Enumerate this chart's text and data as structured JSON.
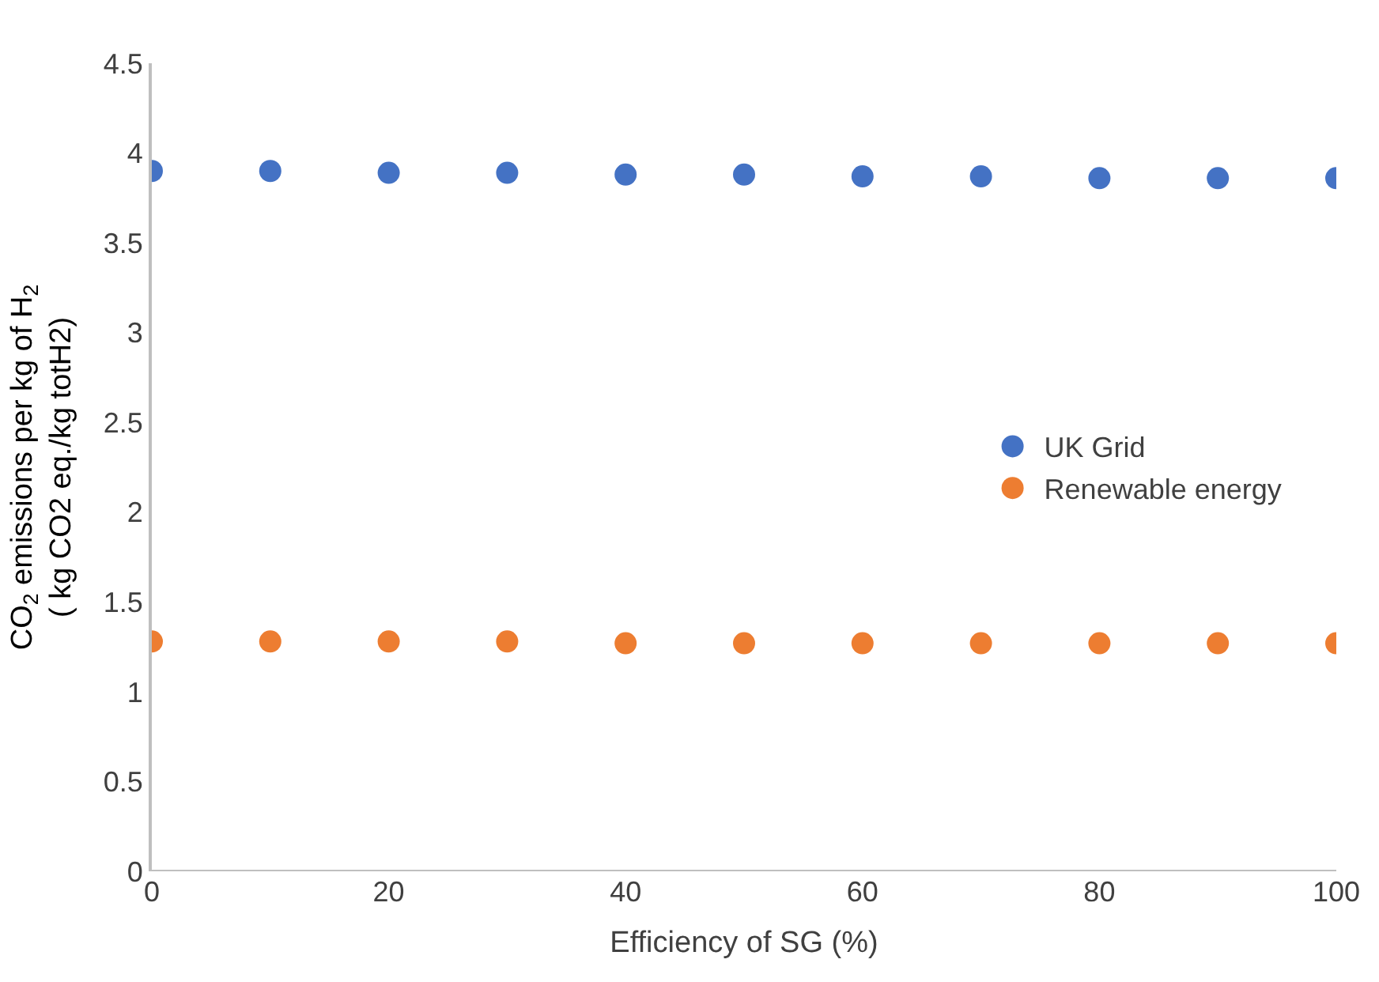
{
  "chart_data": {
    "type": "scatter",
    "xlabel": "Efficiency of SG (%)",
    "ylabel": "CO$_{2}$ emissions per kg of H$_{2}$\n( kg CO2 eq./kg totH2)",
    "x": [
      0,
      10,
      20,
      30,
      40,
      50,
      60,
      70,
      80,
      90,
      100
    ],
    "series": [
      {
        "name": "UK Grid",
        "color": "#4472c4",
        "values": [
          3.9,
          3.9,
          3.89,
          3.89,
          3.88,
          3.88,
          3.87,
          3.87,
          3.86,
          3.86,
          3.86
        ]
      },
      {
        "name": "Renewable energy",
        "color": "#ed7d31",
        "values": [
          1.28,
          1.28,
          1.28,
          1.28,
          1.27,
          1.27,
          1.27,
          1.27,
          1.27,
          1.27,
          1.27
        ]
      }
    ],
    "xlim": [
      0,
      100
    ],
    "xticks": [
      0,
      20,
      40,
      60,
      80,
      100
    ],
    "ylim": [
      0,
      4.5
    ],
    "yticks": [
      0,
      0.5,
      1,
      1.5,
      2,
      2.5,
      3,
      3.5,
      4,
      4.5
    ],
    "legend": "right",
    "marker": "circle"
  }
}
